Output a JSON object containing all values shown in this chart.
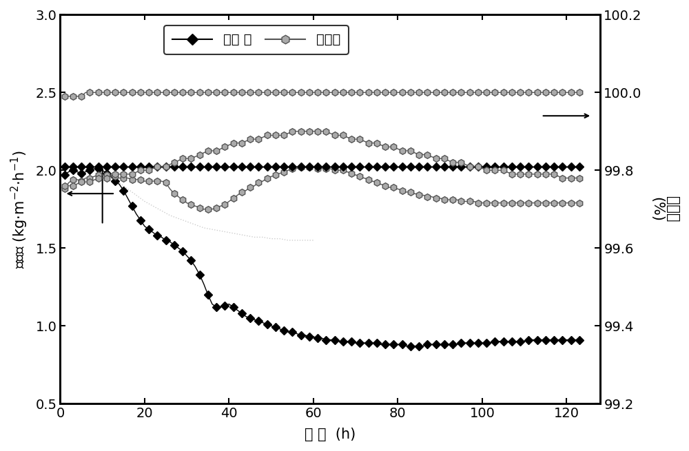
{
  "xlabel": "时 间 (h)",
  "ylabel_left": "产水量 (kg·m$^{-2}$·h$^{-1}$)",
  "ylabel_right": "截留率 (%)",
  "xlim": [
    0,
    128
  ],
  "ylim_left": [
    0.5,
    3.0
  ],
  "ylim_right": [
    99.2,
    100.2
  ],
  "xticks": [
    0,
    20,
    40,
    60,
    80,
    100,
    120
  ],
  "yticks_left": [
    0.5,
    1.0,
    1.5,
    2.0,
    2.5,
    3.0
  ],
  "yticks_right": [
    99.2,
    99.4,
    99.6,
    99.8,
    100.0,
    100.2
  ],
  "legend_label_base": "基底 膜",
  "legend_label_hydro": "疏水膜",
  "bg_color": "#ffffff",
  "base_flux_x": [
    1,
    2,
    3,
    4,
    5,
    6,
    7,
    8,
    9,
    10,
    11,
    12,
    13,
    14,
    15,
    16,
    17,
    18,
    19,
    20,
    21,
    22,
    23,
    24,
    25,
    26,
    27,
    28,
    29,
    30,
    31,
    32,
    33,
    34,
    35,
    36,
    37,
    38,
    39,
    40,
    41,
    42,
    43,
    44,
    45,
    46,
    47,
    48,
    49,
    50,
    51,
    52,
    53,
    54,
    55,
    56,
    57,
    58,
    59,
    60,
    61,
    62,
    63,
    64,
    65,
    66,
    67,
    68,
    69,
    70,
    71,
    72,
    73,
    74,
    75,
    76,
    77,
    78,
    79,
    80,
    81,
    82,
    83,
    84,
    85,
    86,
    87,
    88,
    89,
    90,
    91,
    92,
    93,
    94,
    95,
    96,
    97,
    98,
    99,
    100,
    101,
    102,
    103,
    104,
    105,
    106,
    107,
    108,
    109,
    110,
    111,
    112,
    113,
    114,
    115,
    116,
    117,
    118,
    119,
    120,
    121,
    122,
    123
  ],
  "base_flux_y": [
    1.97,
    1.99,
    2.0,
    1.99,
    1.98,
    1.99,
    2.0,
    2.01,
    2.01,
    2.0,
    1.98,
    1.96,
    1.93,
    1.91,
    1.87,
    1.82,
    1.77,
    1.72,
    1.68,
    1.64,
    1.62,
    1.6,
    1.58,
    1.57,
    1.55,
    1.54,
    1.52,
    1.5,
    1.48,
    1.45,
    1.42,
    1.38,
    1.33,
    1.27,
    1.2,
    1.14,
    1.12,
    1.12,
    1.13,
    1.14,
    1.12,
    1.1,
    1.08,
    1.06,
    1.05,
    1.04,
    1.03,
    1.02,
    1.01,
    1.0,
    0.99,
    0.98,
    0.97,
    0.96,
    0.96,
    0.95,
    0.94,
    0.94,
    0.93,
    0.93,
    0.92,
    0.92,
    0.91,
    0.91,
    0.91,
    0.9,
    0.9,
    0.9,
    0.9,
    0.89,
    0.89,
    0.89,
    0.89,
    0.89,
    0.89,
    0.88,
    0.88,
    0.88,
    0.88,
    0.88,
    0.88,
    0.87,
    0.87,
    0.87,
    0.87,
    0.87,
    0.88,
    0.88,
    0.88,
    0.88,
    0.88,
    0.88,
    0.88,
    0.88,
    0.89,
    0.89,
    0.89,
    0.89,
    0.89,
    0.89,
    0.89,
    0.89,
    0.9,
    0.9,
    0.9,
    0.9,
    0.9,
    0.9,
    0.9,
    0.9,
    0.91,
    0.91,
    0.91,
    0.91,
    0.91,
    0.91,
    0.91,
    0.91,
    0.91,
    0.91,
    0.91,
    0.91,
    0.91
  ],
  "hydro_flux_x": [
    1,
    2,
    3,
    4,
    5,
    6,
    7,
    8,
    9,
    10,
    11,
    12,
    13,
    14,
    15,
    16,
    17,
    18,
    19,
    20,
    21,
    22,
    23,
    24,
    25,
    26,
    27,
    28,
    29,
    30,
    31,
    32,
    33,
    34,
    35,
    36,
    37,
    38,
    39,
    40,
    41,
    42,
    43,
    44,
    45,
    46,
    47,
    48,
    49,
    50,
    51,
    52,
    53,
    54,
    55,
    56,
    57,
    58,
    59,
    60,
    61,
    62,
    63,
    64,
    65,
    66,
    67,
    68,
    69,
    70,
    71,
    72,
    73,
    74,
    75,
    76,
    77,
    78,
    79,
    80,
    81,
    82,
    83,
    84,
    85,
    86,
    87,
    88,
    89,
    90,
    91,
    92,
    93,
    94,
    95,
    96,
    97,
    98,
    99,
    100,
    101,
    102,
    103,
    104,
    105,
    106,
    107,
    108,
    109,
    110,
    111,
    112,
    113,
    114,
    115,
    116,
    117,
    118,
    119,
    120,
    121,
    122,
    123
  ],
  "hydro_flux_y": [
    1.88,
    1.92,
    1.94,
    1.94,
    1.93,
    1.95,
    1.95,
    1.96,
    1.97,
    1.97,
    1.97,
    1.97,
    1.96,
    1.95,
    1.95,
    1.95,
    1.94,
    1.94,
    1.94,
    1.93,
    1.93,
    1.93,
    1.93,
    1.93,
    1.92,
    1.88,
    1.85,
    1.83,
    1.81,
    1.79,
    1.78,
    1.77,
    1.76,
    1.75,
    1.75,
    1.75,
    1.76,
    1.77,
    1.78,
    1.8,
    1.82,
    1.84,
    1.86,
    1.87,
    1.89,
    1.9,
    1.92,
    1.93,
    1.95,
    1.96,
    1.97,
    1.98,
    1.99,
    2.0,
    2.01,
    2.01,
    2.02,
    2.02,
    2.02,
    2.02,
    2.01,
    2.01,
    2.01,
    2.01,
    2.0,
    2.0,
    2.0,
    1.99,
    1.98,
    1.97,
    1.96,
    1.95,
    1.94,
    1.93,
    1.92,
    1.91,
    1.9,
    1.89,
    1.89,
    1.88,
    1.87,
    1.86,
    1.86,
    1.85,
    1.84,
    1.84,
    1.83,
    1.83,
    1.82,
    1.82,
    1.81,
    1.81,
    1.81,
    1.81,
    1.8,
    1.8,
    1.8,
    1.8,
    1.79,
    1.79,
    1.79,
    1.79,
    1.79,
    1.79,
    1.79,
    1.79,
    1.79,
    1.79,
    1.79,
    1.79,
    1.79,
    1.79,
    1.79,
    1.79,
    1.79,
    1.79,
    1.79,
    1.79,
    1.79,
    1.79,
    1.79,
    1.79,
    1.79
  ],
  "base_rejection_x": [
    1,
    2,
    3,
    4,
    5,
    6,
    7,
    8,
    9,
    10,
    11,
    12,
    13,
    14,
    15,
    16,
    17,
    18,
    19,
    20,
    21,
    22,
    23,
    24,
    25,
    26,
    27,
    28,
    29,
    30,
    31,
    32,
    33,
    34,
    35,
    36,
    37,
    38,
    39,
    40,
    41,
    42,
    43,
    44,
    45,
    46,
    47,
    48,
    49,
    50,
    51,
    52,
    53,
    54,
    55,
    56,
    57,
    58,
    59,
    60,
    61,
    62,
    63,
    64,
    65,
    66,
    67,
    68,
    69,
    70,
    71,
    72,
    73,
    74,
    75,
    76,
    77,
    78,
    79,
    80,
    81,
    82,
    83,
    84,
    85,
    86,
    87,
    88,
    89,
    90,
    91,
    92,
    93,
    94,
    95,
    96,
    97,
    98,
    99,
    100,
    101,
    102,
    103,
    104,
    105,
    106,
    107,
    108,
    109,
    110,
    111,
    112,
    113,
    114,
    115,
    116,
    117,
    118,
    119,
    120,
    121,
    122,
    123
  ],
  "base_rejection_y": [
    99.81,
    99.81,
    99.81,
    99.81,
    99.81,
    99.81,
    99.81,
    99.81,
    99.81,
    99.81,
    99.81,
    99.81,
    99.81,
    99.81,
    99.81,
    99.81,
    99.81,
    99.81,
    99.81,
    99.81,
    99.81,
    99.81,
    99.81,
    99.81,
    99.81,
    99.81,
    99.81,
    99.81,
    99.81,
    99.81,
    99.81,
    99.81,
    99.81,
    99.81,
    99.81,
    99.81,
    99.81,
    99.81,
    99.81,
    99.81,
    99.81,
    99.81,
    99.81,
    99.81,
    99.81,
    99.81,
    99.81,
    99.81,
    99.81,
    99.81,
    99.81,
    99.81,
    99.81,
    99.81,
    99.81,
    99.81,
    99.81,
    99.81,
    99.81,
    99.81,
    99.81,
    99.81,
    99.81,
    99.81,
    99.81,
    99.81,
    99.81,
    99.81,
    99.81,
    99.81,
    99.81,
    99.81,
    99.81,
    99.81,
    99.81,
    99.81,
    99.81,
    99.81,
    99.81,
    99.81,
    99.81,
    99.81,
    99.81,
    99.81,
    99.81,
    99.81,
    99.81,
    99.81,
    99.81,
    99.81,
    99.81,
    99.81,
    99.81,
    99.81,
    99.81,
    99.81,
    99.81,
    99.81,
    99.81,
    99.81,
    99.81,
    99.81,
    99.81,
    99.81,
    99.81,
    99.81,
    99.81,
    99.81,
    99.81,
    99.81,
    99.81,
    99.81,
    99.81,
    99.81,
    99.81,
    99.81,
    99.81,
    99.81,
    99.81,
    99.81,
    99.81,
    99.81,
    99.81
  ],
  "hydro_rejection_top_x": [
    1,
    2,
    3,
    4,
    5,
    6,
    7,
    8,
    9,
    10,
    11,
    12,
    13,
    14,
    15,
    16,
    17,
    18,
    19,
    20,
    21,
    22,
    23,
    24,
    25,
    26,
    27,
    28,
    29,
    30,
    31,
    32,
    33,
    34,
    35,
    36,
    37,
    38,
    39,
    40,
    41,
    42,
    43,
    44,
    45,
    46,
    47,
    48,
    49,
    50,
    51,
    52,
    53,
    54,
    55,
    56,
    57,
    58,
    59,
    60,
    61,
    62,
    63,
    64,
    65,
    66,
    67,
    68,
    69,
    70,
    71,
    72,
    73,
    74,
    75,
    76,
    77,
    78,
    79,
    80,
    81,
    82,
    83,
    84,
    85,
    86,
    87,
    88,
    89,
    90,
    91,
    92,
    93,
    94,
    95,
    96,
    97,
    98,
    99,
    100,
    101,
    102,
    103,
    104,
    105,
    106,
    107,
    108,
    109,
    110,
    111,
    112,
    113,
    114,
    115,
    116,
    117,
    118,
    119,
    120,
    121,
    122,
    123
  ],
  "hydro_rejection_top_y": [
    99.99,
    99.99,
    99.99,
    99.99,
    99.99,
    100.0,
    100.0,
    100.0,
    100.0,
    100.0,
    100.0,
    100.0,
    100.0,
    100.0,
    100.0,
    100.0,
    100.0,
    100.0,
    100.0,
    100.0,
    100.0,
    100.0,
    100.0,
    100.0,
    100.0,
    100.0,
    100.0,
    100.0,
    100.0,
    100.0,
    100.0,
    100.0,
    100.0,
    100.0,
    100.0,
    100.0,
    100.0,
    100.0,
    100.0,
    100.0,
    100.0,
    100.0,
    100.0,
    100.0,
    100.0,
    100.0,
    100.0,
    100.0,
    100.0,
    100.0,
    100.0,
    100.0,
    100.0,
    100.0,
    100.0,
    100.0,
    100.0,
    100.0,
    100.0,
    100.0,
    100.0,
    100.0,
    100.0,
    100.0,
    100.0,
    100.0,
    100.0,
    100.0,
    100.0,
    100.0,
    100.0,
    100.0,
    100.0,
    100.0,
    100.0,
    100.0,
    100.0,
    100.0,
    100.0,
    100.0,
    100.0,
    100.0,
    100.0,
    100.0,
    100.0,
    100.0,
    100.0,
    100.0,
    100.0,
    100.0,
    100.0,
    100.0,
    100.0,
    100.0,
    100.0,
    100.0,
    100.0,
    100.0,
    100.0,
    100.0,
    100.0,
    100.0,
    100.0,
    100.0,
    100.0,
    100.0,
    100.0,
    100.0,
    100.0,
    100.0,
    100.0,
    100.0,
    100.0,
    100.0,
    100.0,
    100.0,
    100.0,
    100.0,
    100.0,
    100.0,
    100.0,
    100.0,
    100.0
  ],
  "hydro_rejection_low_x": [
    1,
    3,
    5,
    7,
    9,
    11,
    13,
    15,
    17,
    19,
    21,
    23,
    25,
    27,
    29,
    31,
    33,
    35,
    37,
    39,
    41,
    43,
    45,
    47,
    49,
    51,
    53,
    55,
    57,
    59,
    61,
    63,
    65,
    67,
    69,
    71,
    73,
    75,
    77,
    79,
    81,
    83,
    85,
    87,
    89,
    91,
    93,
    95,
    97,
    99,
    101,
    103,
    105,
    107,
    109,
    111,
    113,
    115,
    117,
    119,
    121,
    123
  ],
  "hydro_rejection_low_y": [
    99.76,
    99.76,
    99.77,
    99.77,
    99.78,
    99.78,
    99.79,
    99.79,
    99.79,
    99.8,
    99.8,
    99.81,
    99.81,
    99.82,
    99.83,
    99.83,
    99.84,
    99.85,
    99.85,
    99.86,
    99.87,
    99.87,
    99.88,
    99.88,
    99.89,
    99.89,
    99.89,
    99.9,
    99.9,
    99.9,
    99.9,
    99.9,
    99.89,
    99.89,
    99.88,
    99.88,
    99.87,
    99.87,
    99.86,
    99.86,
    99.85,
    99.85,
    99.84,
    99.84,
    99.83,
    99.83,
    99.82,
    99.82,
    99.81,
    99.81,
    99.8,
    99.8,
    99.8,
    99.79,
    99.79,
    99.79,
    99.79,
    99.79,
    99.79,
    99.78,
    99.78,
    99.78
  ],
  "dotted_x": [
    8,
    10,
    12,
    14,
    16,
    18,
    20,
    22,
    24,
    26,
    28,
    30,
    32,
    34,
    36,
    38,
    40,
    42,
    44,
    46,
    48,
    50,
    52,
    54,
    56,
    58,
    60
  ],
  "dotted_y": [
    1.96,
    1.97,
    1.95,
    1.92,
    1.88,
    1.84,
    1.8,
    1.77,
    1.74,
    1.71,
    1.69,
    1.67,
    1.65,
    1.63,
    1.62,
    1.61,
    1.6,
    1.59,
    1.58,
    1.57,
    1.57,
    1.56,
    1.56,
    1.55,
    1.55,
    1.55,
    1.55
  ]
}
